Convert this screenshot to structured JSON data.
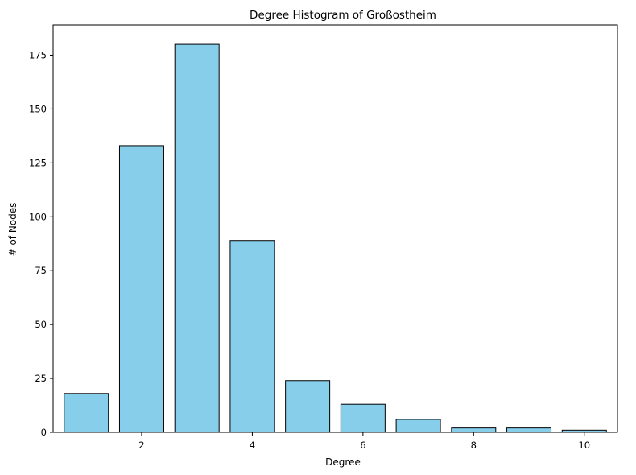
{
  "chart_data": {
    "type": "bar",
    "title": "Degree Histogram of Großostheim",
    "xlabel": "Degree",
    "ylabel": "# of Nodes",
    "x": [
      1,
      2,
      3,
      4,
      5,
      6,
      7,
      8,
      9,
      10
    ],
    "values": [
      18,
      133,
      180,
      89,
      24,
      13,
      6,
      2,
      2,
      1
    ],
    "xlim": [
      0.4,
      10.6
    ],
    "ylim": [
      0,
      189
    ],
    "xticks": [
      2,
      4,
      6,
      8,
      10
    ],
    "yticks": [
      0,
      25,
      50,
      75,
      100,
      125,
      150,
      175
    ],
    "bar_color": "#87ceeb",
    "edge_color": "#000000",
    "grid": false
  }
}
